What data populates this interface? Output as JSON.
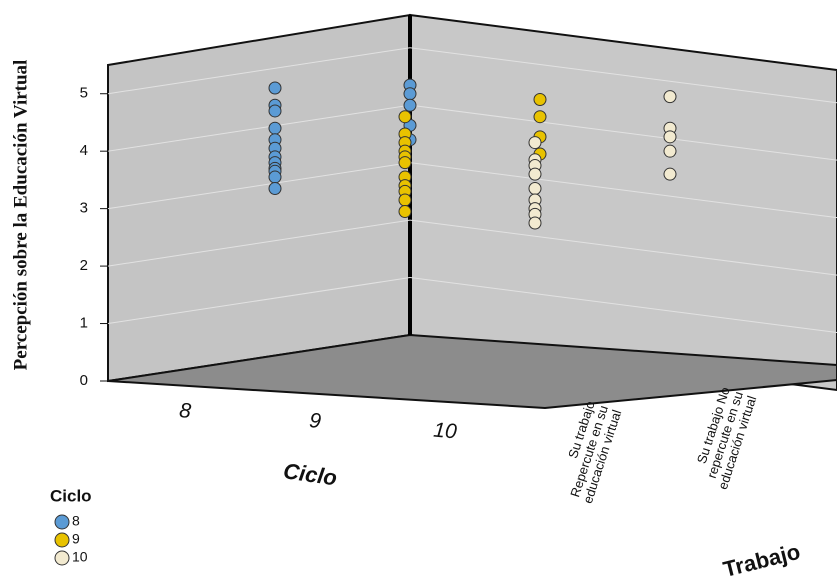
{
  "chart_data": {
    "type": "scatter3d",
    "y_label": "Percepción sobre la Educación Virtual",
    "x_label": "Ciclo",
    "z_label": "Trabajo",
    "categories": [
      "8",
      "9",
      "10"
    ],
    "z_categories": [
      [
        "Su trabajo",
        "Repercute en su",
        "educación virtual"
      ],
      [
        "Su trabajo No",
        "repercute en su",
        "educación virtual"
      ]
    ],
    "ylim": [
      0,
      5.5
    ],
    "yticks": [
      0,
      1,
      2,
      3,
      4,
      5
    ],
    "grid": true,
    "legend_title": "Ciclo",
    "legend_position": "bottom-left",
    "series": [
      {
        "name": "8",
        "color": "#5b9bd5",
        "values": [
          [
            5.1,
            4.8,
            4.7,
            4.4,
            4.2,
            4.05,
            3.9,
            3.8,
            3.7,
            3.65,
            3.55,
            3.35
          ],
          [
            5.15,
            5.0,
            4.8,
            4.45,
            4.2
          ]
        ]
      },
      {
        "name": "9",
        "color": "#e8c200",
        "values": [
          [
            4.6,
            4.3,
            4.15,
            4.0,
            3.9,
            3.8,
            3.55,
            3.4,
            3.3,
            3.15,
            2.95
          ],
          [
            4.9,
            4.6,
            4.25,
            3.95
          ]
        ]
      },
      {
        "name": "10",
        "color": "#f2ead0",
        "values": [
          [
            4.15,
            3.85,
            3.75,
            3.6,
            3.35,
            3.15,
            3.0,
            2.9,
            2.75
          ],
          [
            4.95,
            4.4,
            4.25,
            4.0,
            3.6
          ]
        ]
      }
    ]
  }
}
